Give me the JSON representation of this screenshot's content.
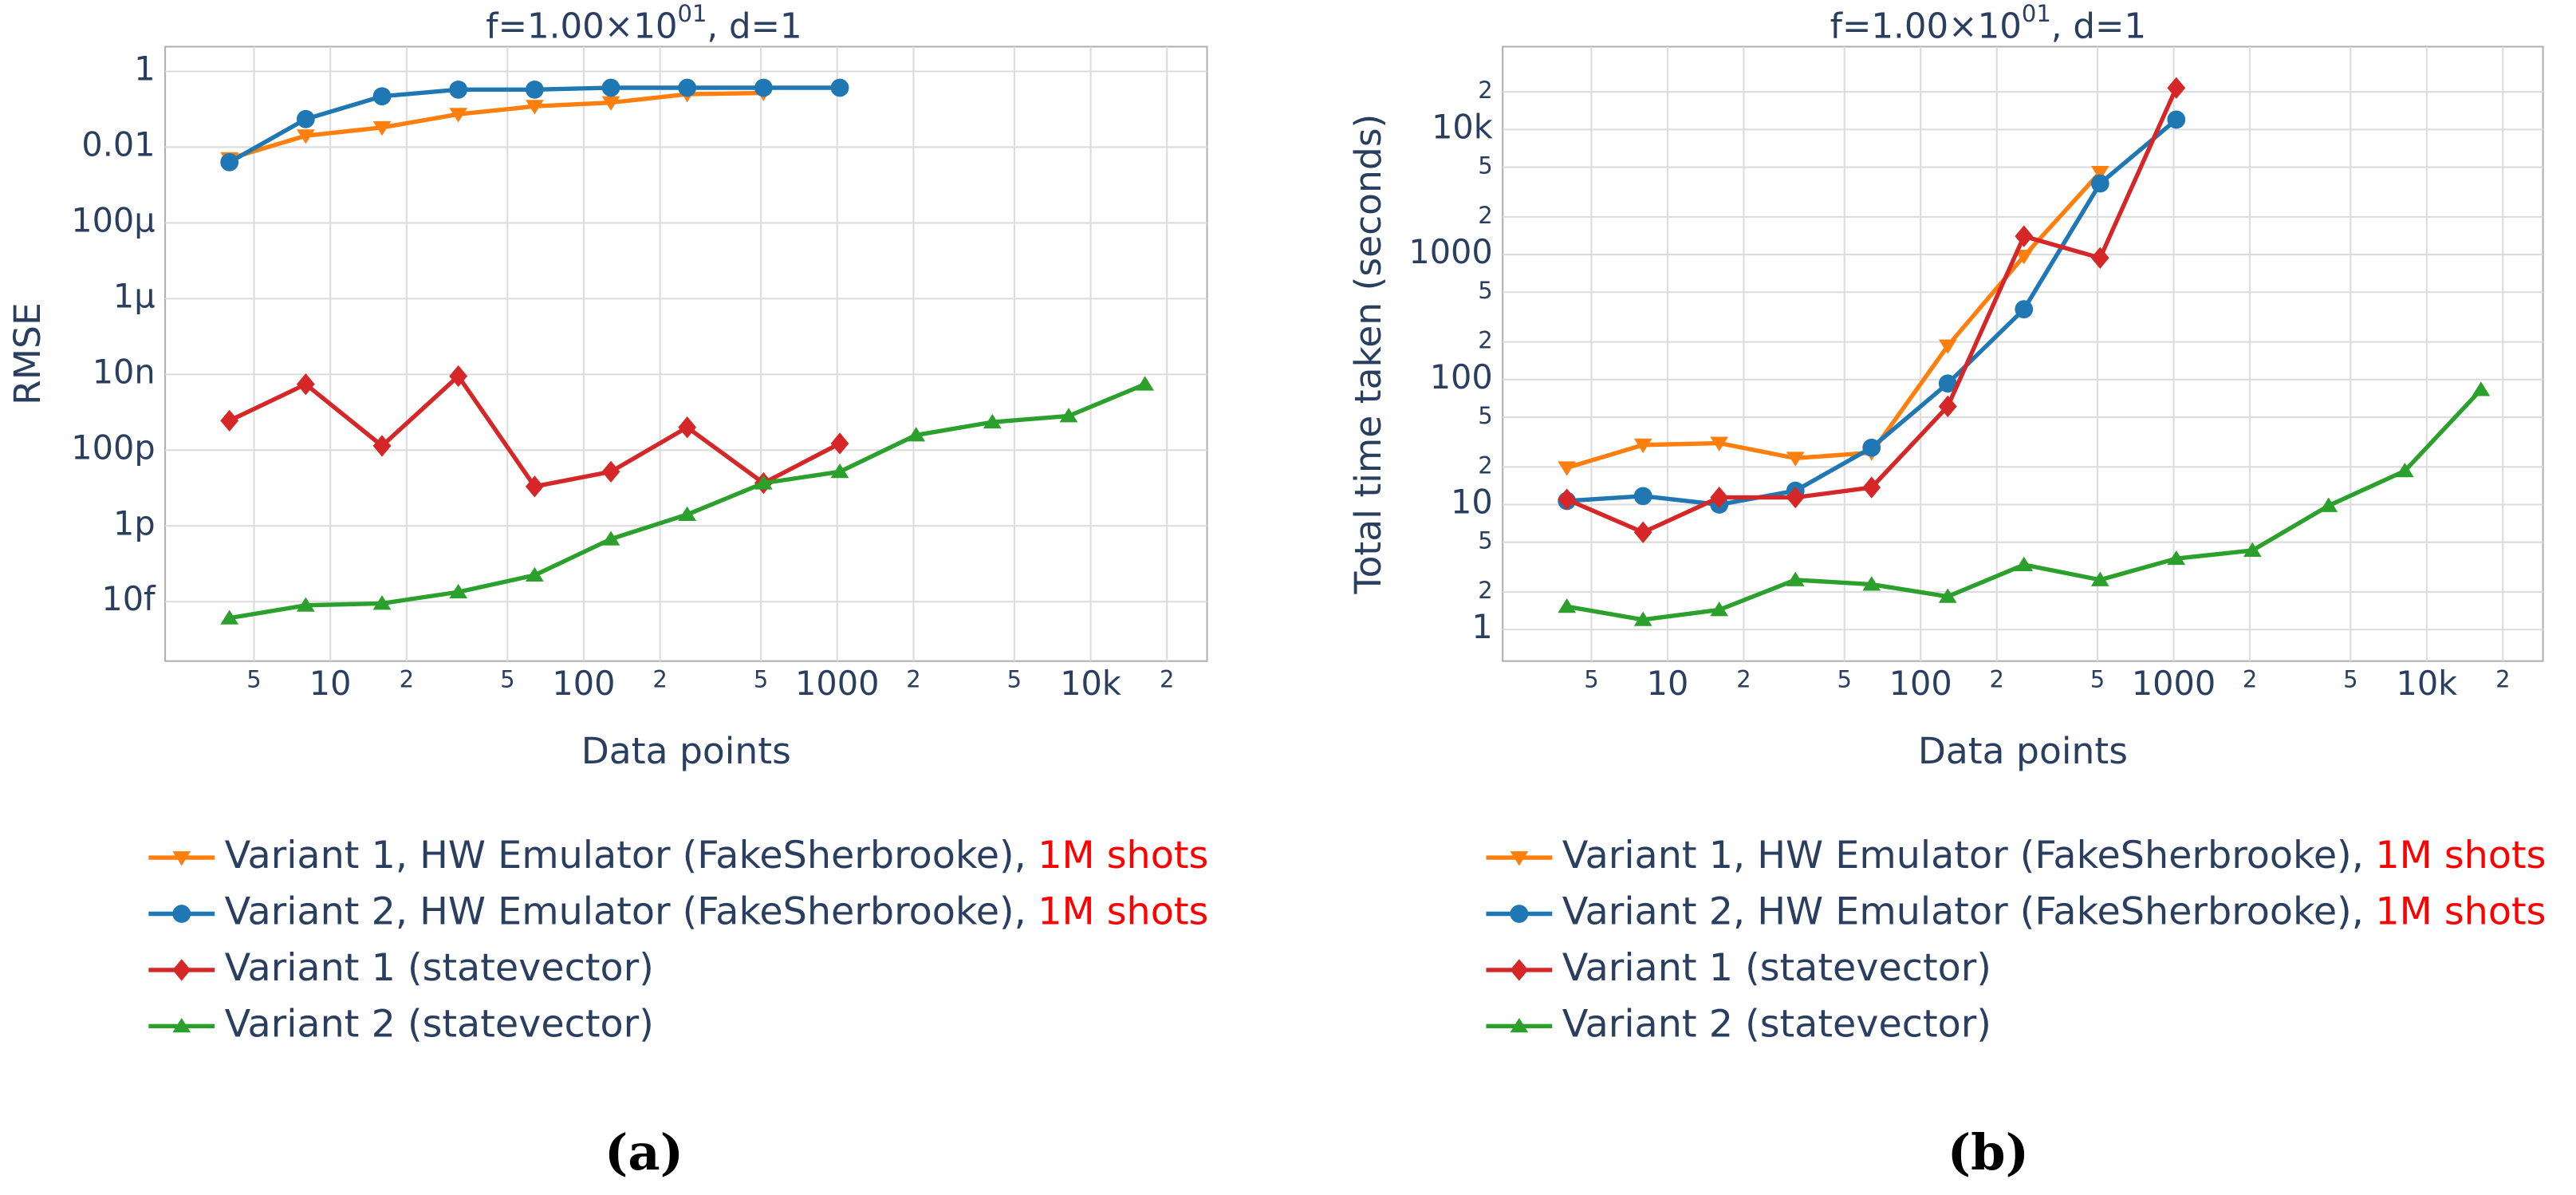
{
  "chart_data": [
    {
      "type": "line",
      "panel": "(a)",
      "title": "f=1.00×10",
      "title_exponent": "01",
      "title_suffix": ", d=1",
      "xlabel": "Data points",
      "ylabel": "RMSE",
      "xscale": "log",
      "yscale": "log",
      "grid": true,
      "x": [
        4,
        8,
        16,
        32,
        64,
        128,
        256,
        512,
        1024,
        2048,
        4096,
        8192,
        16384
      ],
      "xlim": [
        2.23,
        28800
      ],
      "xticks": [
        5,
        10,
        {
          "value": 20,
          "label": "2"
        },
        {
          "value": 50,
          "label": "5"
        },
        100,
        {
          "value": 200,
          "label": "2"
        },
        {
          "value": 500,
          "label": "5"
        },
        1000,
        {
          "value": 2000,
          "label": "2"
        },
        {
          "value": 5000,
          "label": "5"
        },
        {
          "value": 10000,
          "label": "10k"
        },
        {
          "value": 20000,
          "label": "2"
        }
      ],
      "ylim": [
        2.7e-16,
        4.5
      ],
      "yticks": [
        1,
        0.01,
        {
          "value": 0.0001,
          "label": "100μ"
        },
        {
          "value": 1e-06,
          "label": "1μ"
        },
        {
          "value": 1e-08,
          "label": "10n"
        },
        {
          "value": 1e-10,
          "label": "100p"
        },
        {
          "value": 1e-12,
          "label": "1p"
        },
        {
          "value": 1e-14,
          "label": "10f"
        }
      ],
      "series": [
        {
          "name": "Variant 1, HW Emulator (FakeSherbrooke),",
          "note": "1M shots",
          "note_color": "#ff0000",
          "color": "#ff7f0e",
          "marker": "triangle-down",
          "values": [
            0.005,
            0.02,
            0.033,
            0.074,
            0.12,
            0.15,
            0.25,
            0.27,
            null,
            null,
            null,
            null,
            null
          ]
        },
        {
          "name": "Variant 2, HW Emulator (FakeSherbrooke),",
          "note": "1M shots",
          "note_color": "#ff0000",
          "color": "#1f77b4",
          "marker": "circle",
          "values": [
            0.004,
            0.055,
            0.22,
            0.33,
            0.33,
            0.37,
            0.37,
            0.37,
            0.37,
            null,
            null,
            null,
            null
          ]
        },
        {
          "name": "Variant 1 (statevector)",
          "color": "#d62728",
          "marker": "diamond",
          "values": [
            6e-10,
            5.5e-09,
            1.3e-10,
            9e-09,
            1.1e-11,
            2.7e-11,
            4e-10,
            1.35e-11,
            1.5e-10,
            null,
            null,
            null,
            null
          ]
        },
        {
          "name": "Variant 2 (statevector)",
          "color": "#2ca02c",
          "marker": "triangle-up",
          "values": [
            3.7e-15,
            8e-15,
            9e-15,
            1.8e-14,
            5e-14,
            4.5e-13,
            2e-12,
            1.35e-11,
            2.7e-11,
            2.5e-10,
            5.5e-10,
            8e-10,
            5.5e-09
          ]
        }
      ]
    },
    {
      "type": "line",
      "panel": "(b)",
      "title": "f=1.00×10",
      "title_exponent": "01",
      "title_suffix": ", d=1",
      "xlabel": "Data points",
      "ylabel": "Total time taken (seconds)",
      "xscale": "log",
      "yscale": "log",
      "grid": true,
      "x": [
        4,
        8,
        16,
        32,
        64,
        128,
        256,
        512,
        1024,
        2048,
        4096,
        8192,
        16384
      ],
      "xlim": [
        2.23,
        28800
      ],
      "xticks": [
        5,
        10,
        {
          "value": 20,
          "label": "2"
        },
        {
          "value": 50,
          "label": "5"
        },
        100,
        {
          "value": 200,
          "label": "2"
        },
        {
          "value": 500,
          "label": "5"
        },
        1000,
        {
          "value": 2000,
          "label": "2"
        },
        {
          "value": 5000,
          "label": "5"
        },
        {
          "value": 10000,
          "label": "10k"
        },
        {
          "value": 20000,
          "label": "2"
        }
      ],
      "ylim": [
        0.56,
        46000
      ],
      "yticks": [
        1,
        2,
        5,
        10,
        {
          "value": 20,
          "label": "2"
        },
        {
          "value": 50,
          "label": "5"
        },
        100,
        {
          "value": 200,
          "label": "2"
        },
        {
          "value": 500,
          "label": "5"
        },
        1000,
        {
          "value": 2000,
          "label": "2"
        },
        {
          "value": 5000,
          "label": "5"
        },
        {
          "value": 10000,
          "label": "10k"
        },
        {
          "value": 20000,
          "label": "2"
        }
      ],
      "series": [
        {
          "name": "Variant 1, HW Emulator (FakeSherbrooke),",
          "note": "1M shots",
          "note_color": "#ff0000",
          "color": "#ff7f0e",
          "marker": "triangle-down",
          "values": [
            19.7,
            30,
            31,
            23.5,
            26,
            186,
            970,
            4550,
            null,
            null,
            null,
            null,
            null
          ]
        },
        {
          "name": "Variant 2, HW Emulator (FakeSherbrooke),",
          "note": "1M shots",
          "note_color": "#ff0000",
          "color": "#1f77b4",
          "marker": "circle",
          "values": [
            10.7,
            11.7,
            10,
            12.9,
            28.5,
            93,
            365,
            3700,
            12000,
            null,
            null,
            null,
            null
          ]
        },
        {
          "name": "Variant 1 (statevector)",
          "color": "#d62728",
          "marker": "diamond",
          "values": [
            11,
            6,
            11.4,
            11.4,
            13.7,
            61,
            1400,
            940,
            21500,
            null,
            null,
            null,
            null
          ]
        },
        {
          "name": "Variant 2 (statevector)",
          "color": "#2ca02c",
          "marker": "triangle-up",
          "values": [
            1.53,
            1.2,
            1.44,
            2.5,
            2.3,
            1.84,
            3.3,
            2.5,
            3.7,
            4.3,
            9.8,
            18.6,
            83
          ]
        }
      ]
    }
  ]
}
